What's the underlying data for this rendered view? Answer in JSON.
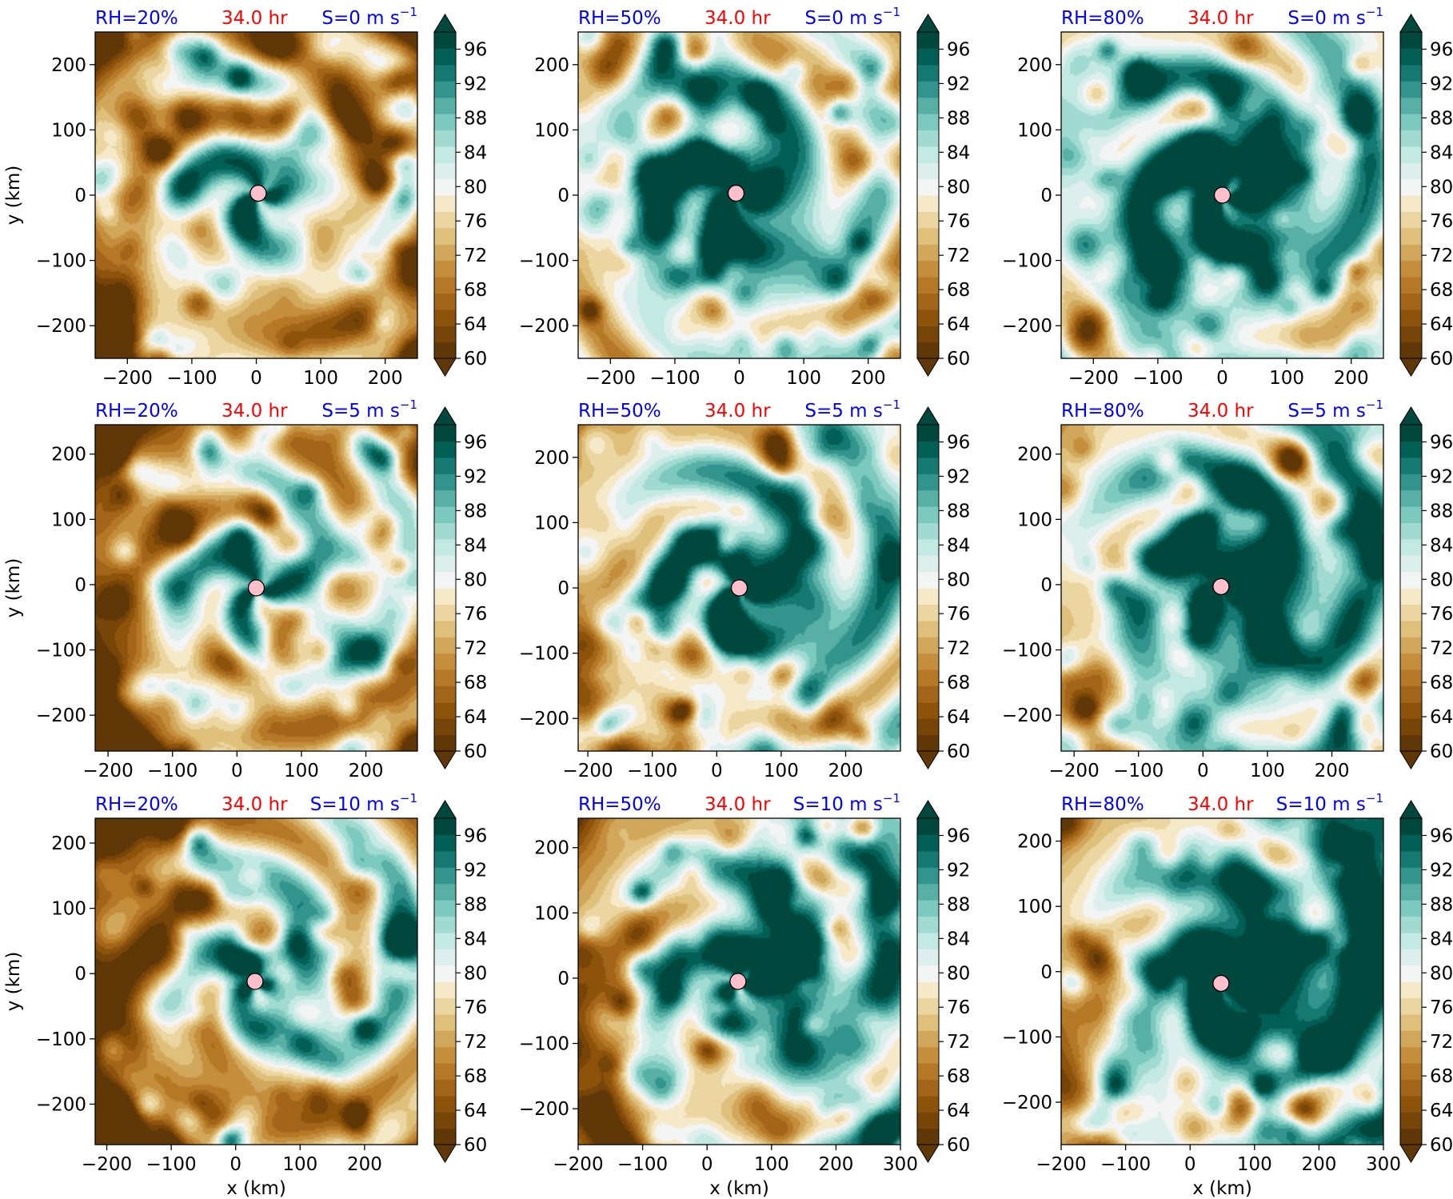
{
  "figure": {
    "cbar_ticks": [
      "96",
      "92",
      "88",
      "84",
      "80",
      "76",
      "72",
      "68",
      "64",
      "60"
    ],
    "ylabel": "y (km)",
    "xlabel": "x (km)",
    "colors": {
      "rh_label": "#0000ff",
      "time_label": "#ff0000",
      "shear_label": "#0000ff",
      "center_marker": "#ffc0cb",
      "cmap_low": "#543005",
      "cmap_mid": "#f5f5f5",
      "cmap_high": "#003c30"
    }
  },
  "chart_data": [
    {
      "type": "heatmap",
      "rh": "RH=20%",
      "time": "34.0 hr",
      "shear": "S=0 m s",
      "shear_exp": "−1",
      "xticks": [
        "−200",
        "−100",
        "0",
        "100",
        "200"
      ],
      "yticks": [
        "200",
        "100",
        "0",
        "−100",
        "−200"
      ],
      "xlim": [
        -250,
        250
      ],
      "ylim": [
        -250,
        250
      ],
      "xtick_values": [
        -200,
        -100,
        0,
        100,
        200
      ],
      "ytick_values": [
        200,
        100,
        0,
        -100,
        -200
      ],
      "center": [
        3,
        3
      ],
      "color_range": [
        60,
        98
      ],
      "color_levels": 20
    },
    {
      "type": "heatmap",
      "rh": "RH=50%",
      "time": "34.0 hr",
      "shear": "S=0 m s",
      "shear_exp": "−1",
      "xticks": [
        "−200",
        "−100",
        "0",
        "100",
        "200"
      ],
      "yticks": [
        "200",
        "100",
        "0",
        "−100",
        "−200"
      ],
      "xlim": [
        -250,
        250
      ],
      "ylim": [
        -250,
        250
      ],
      "xtick_values": [
        -200,
        -100,
        0,
        100,
        200
      ],
      "ytick_values": [
        200,
        100,
        0,
        -100,
        -200
      ],
      "center": [
        -5,
        3
      ],
      "color_range": [
        60,
        98
      ],
      "color_levels": 20
    },
    {
      "type": "heatmap",
      "rh": "RH=80%",
      "time": "34.0 hr",
      "shear": "S=0 m s",
      "shear_exp": "−1",
      "xticks": [
        "−200",
        "−100",
        "0",
        "100",
        "200"
      ],
      "yticks": [
        "200",
        "100",
        "0",
        "−100",
        "−200"
      ],
      "xlim": [
        -250,
        250
      ],
      "ylim": [
        -250,
        250
      ],
      "xtick_values": [
        -200,
        -100,
        0,
        100,
        200
      ],
      "ytick_values": [
        200,
        100,
        0,
        -100,
        -200
      ],
      "center": [
        0,
        0
      ],
      "color_range": [
        60,
        98
      ],
      "color_levels": 20
    },
    {
      "type": "heatmap",
      "rh": "RH=20%",
      "time": "34.0 hr",
      "shear": "S=5 m s",
      "shear_exp": "−1",
      "xticks": [
        "−200",
        "−100",
        "0",
        "100",
        "200"
      ],
      "yticks": [
        "200",
        "100",
        "0",
        "−100",
        "−200"
      ],
      "xlim": [
        -220,
        280
      ],
      "ylim": [
        -255,
        245
      ],
      "xtick_values": [
        -200,
        -100,
        0,
        100,
        200
      ],
      "ytick_values": [
        200,
        100,
        0,
        -100,
        -200
      ],
      "center": [
        30,
        -5
      ],
      "color_range": [
        60,
        98
      ],
      "color_levels": 20
    },
    {
      "type": "heatmap",
      "rh": "RH=50%",
      "time": "34.0 hr",
      "shear": "S=5 m s",
      "shear_exp": "−1",
      "xticks": [
        "−200",
        "−100",
        "0",
        "100",
        "200"
      ],
      "yticks": [
        "200",
        "100",
        "0",
        "−100",
        "−200"
      ],
      "xlim": [
        -215,
        285
      ],
      "ylim": [
        -250,
        250
      ],
      "xtick_values": [
        -200,
        -100,
        0,
        100,
        200
      ],
      "ytick_values": [
        200,
        100,
        0,
        -100,
        -200
      ],
      "center": [
        35,
        0
      ],
      "color_range": [
        60,
        98
      ],
      "color_levels": 20
    },
    {
      "type": "heatmap",
      "rh": "RH=80%",
      "time": "34.0 hr",
      "shear": "S=5 m s",
      "shear_exp": "−1",
      "xticks": [
        "−200",
        "−100",
        "0",
        "100",
        "200"
      ],
      "yticks": [
        "200",
        "100",
        "0",
        "−100",
        "−200"
      ],
      "xlim": [
        -220,
        280
      ],
      "ylim": [
        -255,
        245
      ],
      "xtick_values": [
        -200,
        -100,
        0,
        100,
        200
      ],
      "ytick_values": [
        200,
        100,
        0,
        -100,
        -200
      ],
      "center": [
        28,
        -3
      ],
      "color_range": [
        60,
        98
      ],
      "color_levels": 20
    },
    {
      "type": "heatmap",
      "rh": "RH=20%",
      "time": "34.0 hr",
      "shear": "S=10 m s",
      "shear_exp": "−1",
      "xticks": [
        "−200",
        "−100",
        "0",
        "100",
        "200"
      ],
      "yticks": [
        "200",
        "100",
        "0",
        "−100",
        "−200"
      ],
      "xlim": [
        -218,
        282
      ],
      "ylim": [
        -262,
        238
      ],
      "xtick_values": [
        -200,
        -100,
        0,
        100,
        200
      ],
      "ytick_values": [
        200,
        100,
        0,
        -100,
        -200
      ],
      "center": [
        30,
        -12
      ],
      "color_range": [
        60,
        98
      ],
      "color_levels": 20
    },
    {
      "type": "heatmap",
      "rh": "RH=50%",
      "time": "34.0 hr",
      "shear": "S=10 m s",
      "shear_exp": "−1",
      "xticks": [
        "−200",
        "−100",
        "0",
        "100",
        "200",
        "300"
      ],
      "yticks": [
        "200",
        "100",
        "0",
        "−100",
        "−200"
      ],
      "xlim": [
        -200,
        300
      ],
      "ylim": [
        -255,
        245
      ],
      "xtick_values": [
        -200,
        -100,
        0,
        100,
        200,
        300
      ],
      "ytick_values": [
        200,
        100,
        0,
        -100,
        -200
      ],
      "center": [
        48,
        -5
      ],
      "color_range": [
        60,
        98
      ],
      "color_levels": 20
    },
    {
      "type": "heatmap",
      "rh": "RH=80%",
      "time": "34.0 hr",
      "shear": "S=10 m s",
      "shear_exp": "−1",
      "xticks": [
        "−200",
        "−100",
        "0",
        "100",
        "200",
        "300"
      ],
      "yticks": [
        "200",
        "100",
        "0",
        "−100",
        "−200"
      ],
      "xlim": [
        -200,
        300
      ],
      "ylim": [
        -265,
        235
      ],
      "xtick_values": [
        -200,
        -100,
        0,
        100,
        200,
        300
      ],
      "ytick_values": [
        200,
        100,
        0,
        -100,
        -200
      ],
      "center": [
        48,
        -18
      ],
      "color_range": [
        60,
        98
      ],
      "color_levels": 20
    }
  ]
}
